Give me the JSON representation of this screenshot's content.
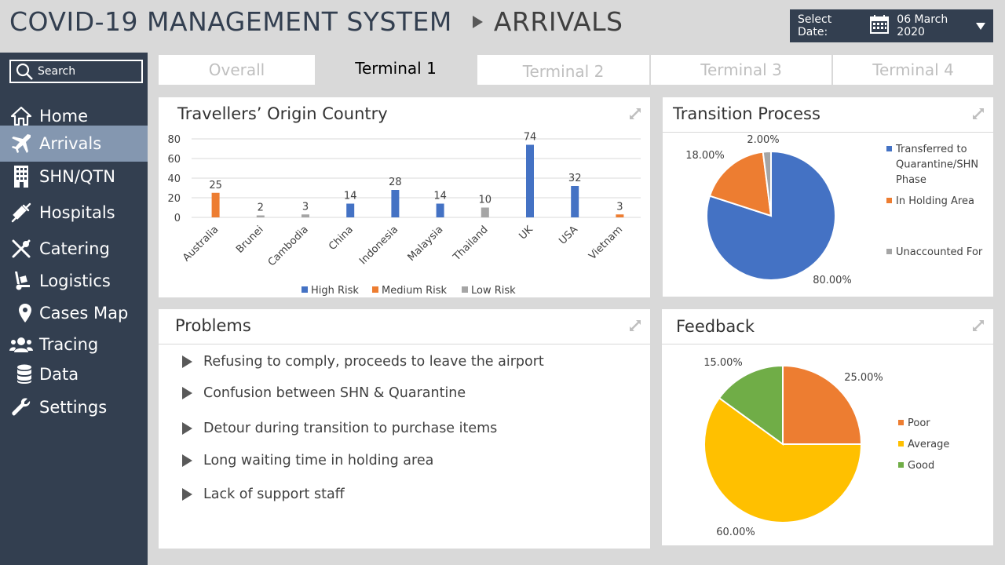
{
  "header": {
    "app_title": "COVID-19 MANAGEMENT SYSTEM",
    "section": "ARRIVALS",
    "date_label": "Select Date:",
    "date_value": "06 March 2020"
  },
  "sidebar": {
    "search_label": "Search",
    "items": [
      {
        "label": "Home",
        "icon": "home-icon"
      },
      {
        "label": "Arrivals",
        "icon": "airplane-icon"
      },
      {
        "label": "SHN/QTN",
        "icon": "building-icon"
      },
      {
        "label": "Hospitals",
        "icon": "syringe-icon"
      },
      {
        "label": "Catering",
        "icon": "utensils-icon"
      },
      {
        "label": "Logistics",
        "icon": "hand-truck-icon"
      },
      {
        "label": "Cases Map",
        "icon": "map-pin-icon"
      },
      {
        "label": "Tracing",
        "icon": "people-icon"
      },
      {
        "label": "Data",
        "icon": "database-icon"
      },
      {
        "label": "Settings",
        "icon": "wrench-icon"
      }
    ]
  },
  "tabs": [
    "Overall",
    "Terminal 1",
    "Terminal 2",
    "Terminal 3",
    "Terminal 4"
  ],
  "panels": {
    "origin_title": "Travellers’ Origin Country",
    "transition_title": "Transition Process",
    "problems_title": "Problems",
    "feedback_title": "Feedback"
  },
  "problems": [
    "Refusing to comply, proceeds to leave the airport",
    "Confusion between SHN & Quarantine",
    "Detour during transition to purchase items",
    "Long waiting time in holding area",
    "Lack of support staff"
  ],
  "colors": {
    "high": "#4472c4",
    "medium": "#ed7d31",
    "low": "#a5a5a5",
    "poor": "#ed7d31",
    "average": "#ffc000",
    "good": "#70ad47",
    "sidebar": "#333f50",
    "active": "#8497b0"
  },
  "chart_data": [
    {
      "type": "bar",
      "categories": [
        "Australia",
        "Brunei",
        "Cambodia",
        "China",
        "Indonesia",
        "Malaysia",
        "Thailand",
        "UK",
        "USA",
        "Vietnam"
      ],
      "values": [
        25,
        2,
        3,
        14,
        28,
        14,
        10,
        74,
        32,
        3
      ],
      "risk": [
        "Medium Risk",
        "Low Risk",
        "Low Risk",
        "High Risk",
        "High Risk",
        "High Risk",
        "Low Risk",
        "High Risk",
        "High Risk",
        "Medium Risk"
      ],
      "legend": [
        "High Risk",
        "Medium Risk",
        "Low Risk"
      ],
      "yticks": [
        "0",
        "20",
        "40",
        "60",
        "80"
      ],
      "ylim": [
        0,
        80
      ],
      "legend_position": "bottom"
    },
    {
      "type": "pie",
      "labels": [
        "Transferred to Quarantine/SHN Phase",
        "In Holding Area",
        "Unaccounted For"
      ],
      "label_lines": [
        [
          "Transferred to",
          "Quarantine/SHN",
          "Phase"
        ],
        [
          "In Holding Area"
        ],
        [
          "Unaccounted For"
        ]
      ],
      "values": [
        80,
        18,
        2
      ],
      "value_labels": [
        "80.00%",
        "18.00%",
        "2.00%"
      ],
      "legend_position": "right"
    },
    {
      "type": "pie",
      "labels": [
        "Poor",
        "Average",
        "Good"
      ],
      "values": [
        25,
        60,
        15
      ],
      "value_labels": [
        "25.00%",
        "60.00%",
        "15.00%"
      ],
      "legend_position": "right"
    }
  ]
}
